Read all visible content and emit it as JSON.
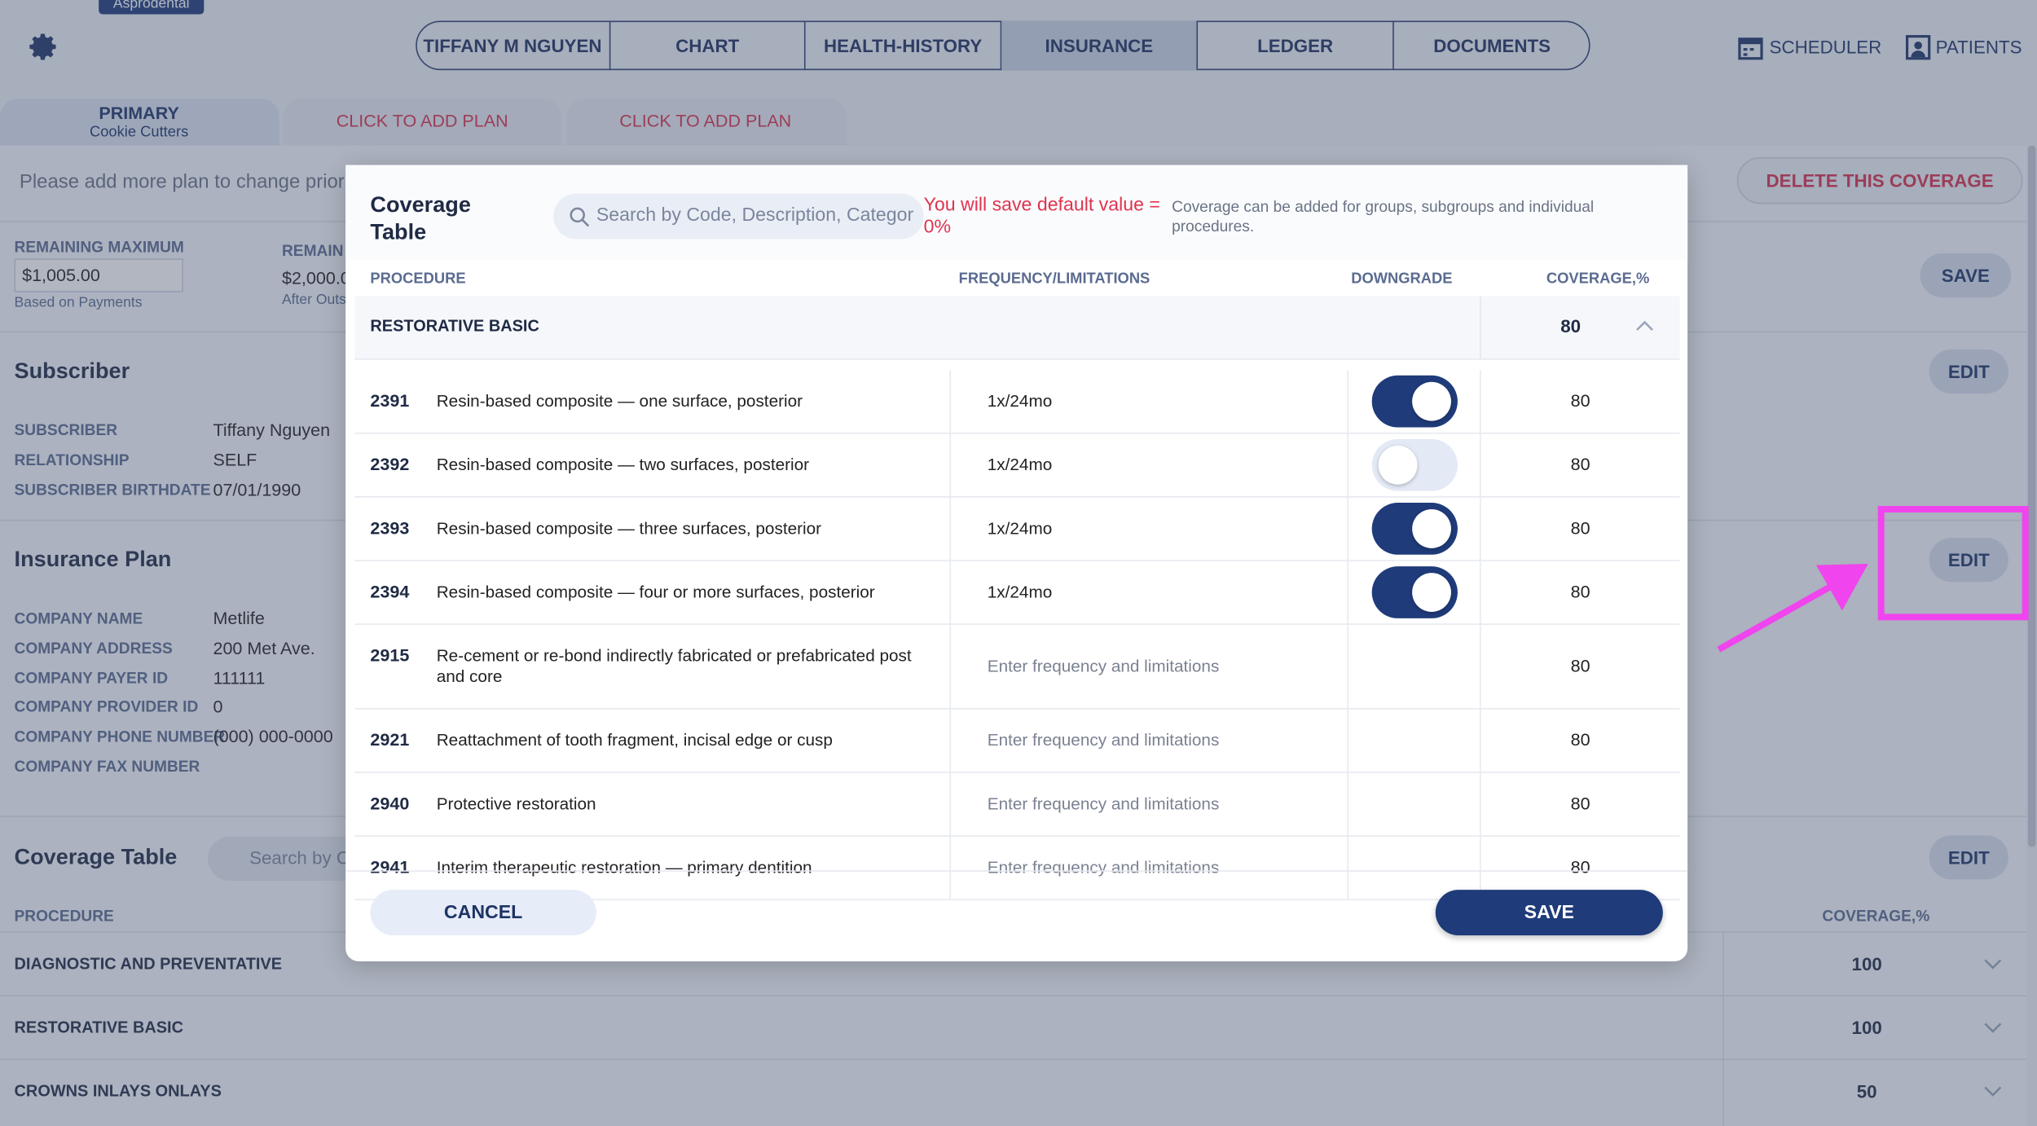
{
  "logo": "Asprodental",
  "nav": {
    "tabs": [
      "TIFFANY M NGUYEN",
      "CHART",
      "HEALTH-HISTORY",
      "INSURANCE",
      "LEDGER",
      "DOCUMENTS"
    ],
    "active": 3,
    "scheduler": "SCHEDULER",
    "patients": "PATIENTS"
  },
  "plan_tabs": {
    "primary": "PRIMARY",
    "primary_plan": "Cookie Cutters",
    "add": [
      "CLICK TO ADD PLAN",
      "CLICK TO ADD PLAN"
    ]
  },
  "notice": "Please add more plan to change priori",
  "delete_button": "DELETE THIS COVERAGE",
  "remaining": {
    "max_label": "REMAINING MAXIMUM",
    "max_value": "$1,005.00",
    "max_note": "Based on Payments",
    "second_label": "REMAIN",
    "second_value": "$2,000.0",
    "second_note": "After Outs"
  },
  "save_button": "SAVE",
  "subscriber": {
    "title": "Subscriber",
    "edit": "EDIT",
    "fields": [
      {
        "label": "SUBSCRIBER",
        "value": "Tiffany Nguyen"
      },
      {
        "label": "RELATIONSHIP",
        "value": "SELF"
      },
      {
        "label": "SUBSCRIBER BIRTHDATE",
        "value": "07/01/1990"
      }
    ]
  },
  "insurance_plan": {
    "title": "Insurance Plan",
    "edit": "EDIT",
    "fields": [
      {
        "label": "COMPANY NAME",
        "value": "Metlife"
      },
      {
        "label": "COMPANY ADDRESS",
        "value": "200 Met Ave."
      },
      {
        "label": "COMPANY PAYER ID",
        "value": "111111"
      },
      {
        "label": "COMPANY PROVIDER ID",
        "value": "0"
      },
      {
        "label": "COMPANY PHONE NUMBER",
        "value": "(000) 000-0000"
      },
      {
        "label": "COMPANY FAX NUMBER"
      }
    ]
  },
  "coverage_table": {
    "title": "Coverage Table",
    "search_placeholder": "Search by C",
    "edit": "EDIT",
    "headers": [
      "PROCEDURE",
      "COVERAGE,%"
    ],
    "rows": [
      {
        "name": "DIAGNOSTIC AND PREVENTATIVE",
        "coverage": 100
      },
      {
        "name": "RESTORATIVE BASIC",
        "coverage": 100
      },
      {
        "name": "CROWNS INLAYS ONLAYS",
        "coverage": 50
      }
    ]
  },
  "modal": {
    "title": "Coverage Table",
    "search_placeholder": "Search by Code, Description, Categor",
    "warning": "You will save default value = 0%",
    "info": "Coverage can be added for groups, subgroups and individual procedures.",
    "headers": [
      "PROCEDURE",
      "FREQUENCY/LIMITATIONS",
      "DOWNGRADE",
      "COVERAGE,%"
    ],
    "group": {
      "name": "RESTORATIVE BASIC",
      "coverage": 80
    },
    "rows": [
      {
        "code": "2391",
        "description": "Resin-based composite — one surface, posterior",
        "frequency": "1x/24mo",
        "downgrade": true,
        "coverage": 80
      },
      {
        "code": "2392",
        "description": "Resin-based composite — two surfaces, posterior",
        "frequency": "1x/24mo",
        "downgrade": false,
        "coverage": 80
      },
      {
        "code": "2393",
        "description": "Resin-based composite — three surfaces, posterior",
        "frequency": "1x/24mo",
        "downgrade": true,
        "coverage": 80
      },
      {
        "code": "2394",
        "description": "Resin-based composite — four or more surfaces, posterior",
        "frequency": "1x/24mo",
        "downgrade": true,
        "coverage": 80
      },
      {
        "code": "2915",
        "description": "Re-cement or re-bond indirectly fabricated or prefabricated post and core",
        "frequency_placeholder": "Enter frequency and limitations",
        "coverage": 80
      },
      {
        "code": "2921",
        "description": "Reattachment of tooth fragment, incisal edge or cusp",
        "frequency_placeholder": "Enter frequency and limitations",
        "coverage": 80
      },
      {
        "code": "2940",
        "description": "Protective restoration",
        "frequency_placeholder": "Enter frequency and limitations",
        "coverage": 80
      },
      {
        "code": "2941",
        "description": "Interim therapeutic restoration — primary dentition",
        "frequency_placeholder": "Enter frequency and limitations",
        "coverage": 80
      }
    ],
    "cancel": "CANCEL",
    "save": "SAVE"
  }
}
